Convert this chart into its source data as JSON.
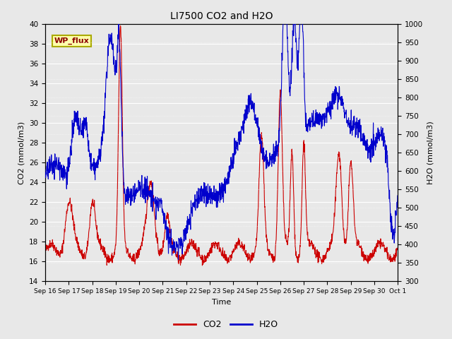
{
  "title": "LI7500 CO2 and H2O",
  "xlabel": "Time",
  "ylabel_left": "CO2 (mmol/m3)",
  "ylabel_right": "H2O (mmol/m3)",
  "co2_color": "#cc0000",
  "h2o_color": "#0000cc",
  "ylim_left": [
    14,
    40
  ],
  "ylim_right": [
    300,
    1000
  ],
  "yticks_left": [
    14,
    16,
    18,
    20,
    22,
    24,
    26,
    28,
    30,
    32,
    34,
    36,
    38,
    40
  ],
  "yticks_right": [
    300,
    350,
    400,
    450,
    500,
    550,
    600,
    650,
    700,
    750,
    800,
    850,
    900,
    950,
    1000
  ],
  "background_color": "#e8e8e8",
  "legend_label_co2": "CO2",
  "legend_label_h2o": "H2O",
  "annotation_text": "WP_flux",
  "xtick_labels": [
    "Sep 16",
    "Sep 17",
    "Sep 18",
    "Sep 19",
    "Sep 20",
    "Sep 21",
    "Sep 22",
    "Sep 23",
    "Sep 24",
    "Sep 25",
    "Sep 26",
    "Sep 27",
    "Sep 28",
    "Sep 29",
    "Sep 30",
    "Oct 1"
  ],
  "num_points": 1500,
  "seed": 42
}
